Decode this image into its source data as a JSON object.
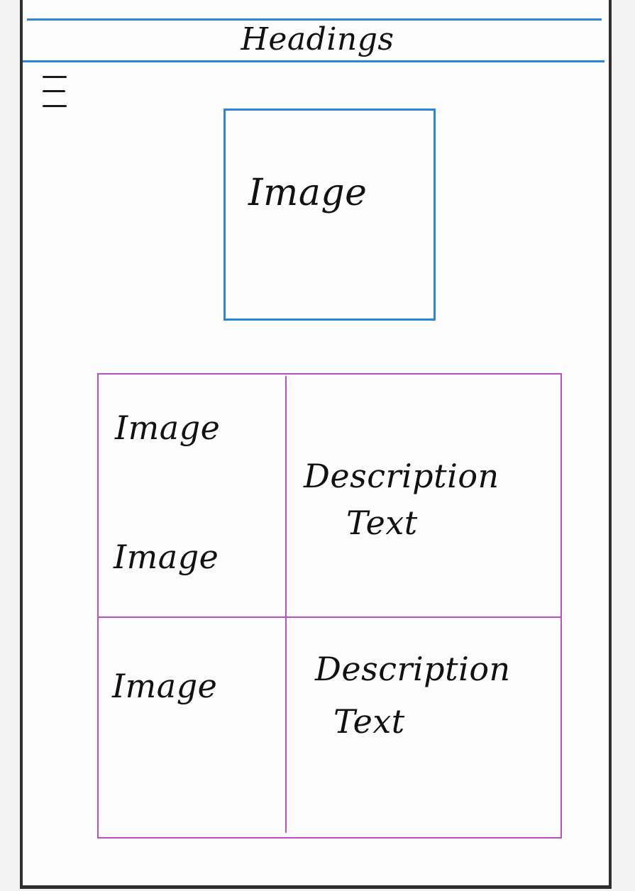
{
  "header": {
    "title": "Headings"
  },
  "menu": {
    "icon": "hamburger-menu-icon"
  },
  "hero": {
    "label": "Image"
  },
  "grid": {
    "rows": [
      {
        "images": [
          "Image",
          "Image"
        ],
        "description": [
          "Description",
          "Text"
        ]
      },
      {
        "images": [
          "Image"
        ],
        "description": [
          "Description",
          "Text"
        ]
      }
    ]
  },
  "colors": {
    "header_lines": "#2b86d8",
    "hero_border": "#2b86d8",
    "grid_lines": "#b94fc0",
    "frame": "#2f2f2f"
  }
}
